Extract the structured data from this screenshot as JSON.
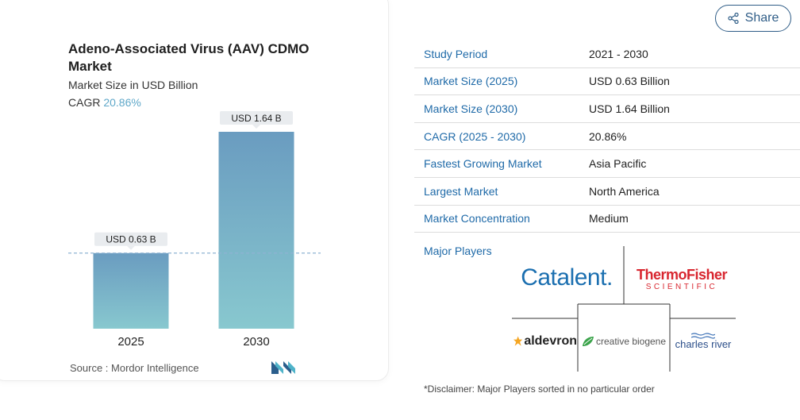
{
  "share": {
    "label": "Share",
    "icon": "share-icon"
  },
  "chart_data": {
    "type": "bar",
    "title": "Adeno-Associated Virus (AAV) CDMO Market",
    "subtitle": "Market Size in USD Billion",
    "cagr_label": "CAGR",
    "cagr_value": "20.86%",
    "categories": [
      "2025",
      "2030"
    ],
    "values": [
      0.63,
      1.64
    ],
    "data_labels": [
      "USD 0.63 B",
      "USD 1.64 B"
    ],
    "ylim": [
      0,
      1.64
    ],
    "xlabel": "",
    "ylabel": "",
    "grid": false,
    "reference_line_at": 0.63,
    "colors": {
      "bar_top": "#6a9cc0",
      "bar_bottom": "#88c8cf",
      "label_bg": "#e9ecef",
      "refline": "#8fb4d4"
    }
  },
  "source": "Source :  Mordor Intelligence",
  "info": [
    {
      "label": "Study Period",
      "value": "2021 - 2030"
    },
    {
      "label": "Market Size (2025)",
      "value": "USD 0.63 Billion"
    },
    {
      "label": "Market Size (2030)",
      "value": "USD 1.64 Billion"
    },
    {
      "label": "CAGR (2025 - 2030)",
      "value": "20.86%"
    },
    {
      "label": "Fastest Growing Market",
      "value": "Asia Pacific"
    },
    {
      "label": "Largest Market",
      "value": "North America"
    },
    {
      "label": "Market Concentration",
      "value": "Medium"
    }
  ],
  "players_label": "Major Players",
  "players": {
    "catalent": "Catalent.",
    "thermo_top": "ThermoFisher",
    "thermo_bottom": "SCIENTIFIC",
    "aldevron": "aldevron",
    "creative": "creative biogene",
    "charles": "charles river"
  },
  "disclaimer": "*Disclaimer: Major Players sorted in no particular order"
}
